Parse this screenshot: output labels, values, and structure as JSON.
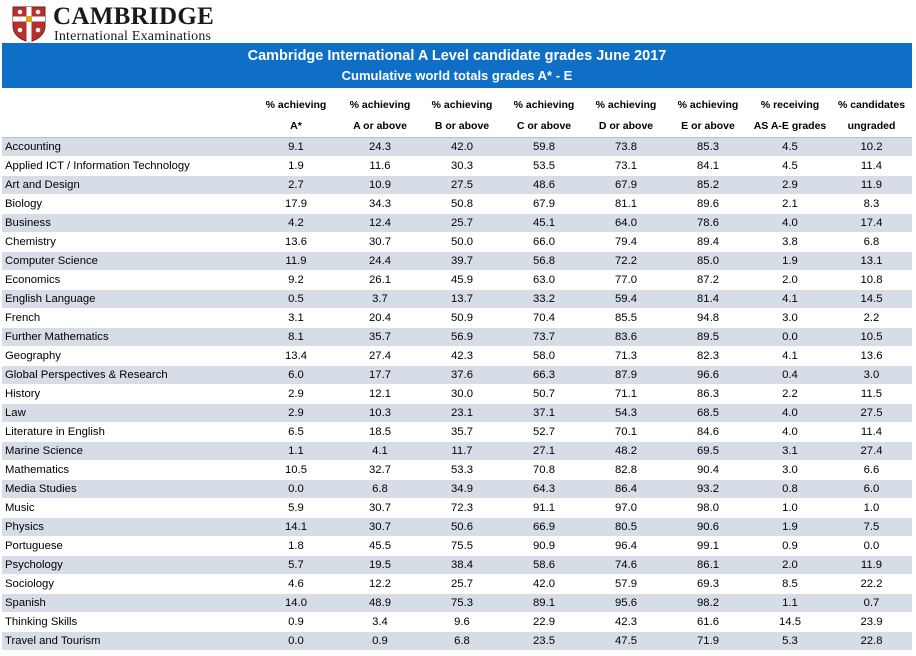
{
  "logo": {
    "name": "CAMBRIDGE",
    "subtitle": "International Examinations"
  },
  "banner": {
    "title": "Cambridge International A Level candidate grades June 2017",
    "subtitle": "Cumulative world totals grades A* - E"
  },
  "colors": {
    "banner": "#0f6fc6",
    "row_stripe": "#d7dde7",
    "shield": "#b5312b"
  },
  "table": {
    "headers": [
      {
        "l1": "",
        "l2": ""
      },
      {
        "l1": "% achieving",
        "l2": "A*"
      },
      {
        "l1": "% achieving",
        "l2": "A or above"
      },
      {
        "l1": "% achieving",
        "l2": "B or above"
      },
      {
        "l1": "% achieving",
        "l2": "C or above"
      },
      {
        "l1": "% achieving",
        "l2": "D or above"
      },
      {
        "l1": "% achieving",
        "l2": "E or above"
      },
      {
        "l1": "% receiving",
        "l2": "AS A-E grades"
      },
      {
        "l1": "% candidates",
        "l2": "ungraded"
      }
    ],
    "rows": [
      [
        "Accounting",
        "9.1",
        "24.3",
        "42.0",
        "59.8",
        "73.8",
        "85.3",
        "4.5",
        "10.2"
      ],
      [
        "Applied ICT / Information Technology",
        "1.9",
        "11.6",
        "30.3",
        "53.5",
        "73.1",
        "84.1",
        "4.5",
        "11.4"
      ],
      [
        "Art and Design",
        "2.7",
        "10.9",
        "27.5",
        "48.6",
        "67.9",
        "85.2",
        "2.9",
        "11.9"
      ],
      [
        "Biology",
        "17.9",
        "34.3",
        "50.8",
        "67.9",
        "81.1",
        "89.6",
        "2.1",
        "8.3"
      ],
      [
        "Business",
        "4.2",
        "12.4",
        "25.7",
        "45.1",
        "64.0",
        "78.6",
        "4.0",
        "17.4"
      ],
      [
        "Chemistry",
        "13.6",
        "30.7",
        "50.0",
        "66.0",
        "79.4",
        "89.4",
        "3.8",
        "6.8"
      ],
      [
        "Computer Science",
        "11.9",
        "24.4",
        "39.7",
        "56.8",
        "72.2",
        "85.0",
        "1.9",
        "13.1"
      ],
      [
        "Economics",
        "9.2",
        "26.1",
        "45.9",
        "63.0",
        "77.0",
        "87.2",
        "2.0",
        "10.8"
      ],
      [
        "English Language",
        "0.5",
        "3.7",
        "13.7",
        "33.2",
        "59.4",
        "81.4",
        "4.1",
        "14.5"
      ],
      [
        "French",
        "3.1",
        "20.4",
        "50.9",
        "70.4",
        "85.5",
        "94.8",
        "3.0",
        "2.2"
      ],
      [
        "Further Mathematics",
        "8.1",
        "35.7",
        "56.9",
        "73.7",
        "83.6",
        "89.5",
        "0.0",
        "10.5"
      ],
      [
        "Geography",
        "13.4",
        "27.4",
        "42.3",
        "58.0",
        "71.3",
        "82.3",
        "4.1",
        "13.6"
      ],
      [
        "Global Perspectives & Research",
        "6.0",
        "17.7",
        "37.6",
        "66.3",
        "87.9",
        "96.6",
        "0.4",
        "3.0"
      ],
      [
        "History",
        "2.9",
        "12.1",
        "30.0",
        "50.7",
        "71.1",
        "86.3",
        "2.2",
        "11.5"
      ],
      [
        "Law",
        "2.9",
        "10.3",
        "23.1",
        "37.1",
        "54.3",
        "68.5",
        "4.0",
        "27.5"
      ],
      [
        "Literature in English",
        "6.5",
        "18.5",
        "35.7",
        "52.7",
        "70.1",
        "84.6",
        "4.0",
        "11.4"
      ],
      [
        "Marine Science",
        "1.1",
        "4.1",
        "11.7",
        "27.1",
        "48.2",
        "69.5",
        "3.1",
        "27.4"
      ],
      [
        "Mathematics",
        "10.5",
        "32.7",
        "53.3",
        "70.8",
        "82.8",
        "90.4",
        "3.0",
        "6.6"
      ],
      [
        "Media Studies",
        "0.0",
        "6.8",
        "34.9",
        "64.3",
        "86.4",
        "93.2",
        "0.8",
        "6.0"
      ],
      [
        "Music",
        "5.9",
        "30.7",
        "72.3",
        "91.1",
        "97.0",
        "98.0",
        "1.0",
        "1.0"
      ],
      [
        "Physics",
        "14.1",
        "30.7",
        "50.6",
        "66.9",
        "80.5",
        "90.6",
        "1.9",
        "7.5"
      ],
      [
        "Portuguese",
        "1.8",
        "45.5",
        "75.5",
        "90.9",
        "96.4",
        "99.1",
        "0.9",
        "0.0"
      ],
      [
        "Psychology",
        "5.7",
        "19.5",
        "38.4",
        "58.6",
        "74.6",
        "86.1",
        "2.0",
        "11.9"
      ],
      [
        "Sociology",
        "4.6",
        "12.2",
        "25.7",
        "42.0",
        "57.9",
        "69.3",
        "8.5",
        "22.2"
      ],
      [
        "Spanish",
        "14.0",
        "48.9",
        "75.3",
        "89.1",
        "95.6",
        "98.2",
        "1.1",
        "0.7"
      ],
      [
        "Thinking Skills",
        "0.9",
        "3.4",
        "9.6",
        "22.9",
        "42.3",
        "61.6",
        "14.5",
        "23.9"
      ],
      [
        "Travel and Tourism",
        "0.0",
        "0.9",
        "6.8",
        "23.5",
        "47.5",
        "71.9",
        "5.3",
        "22.8"
      ]
    ]
  }
}
